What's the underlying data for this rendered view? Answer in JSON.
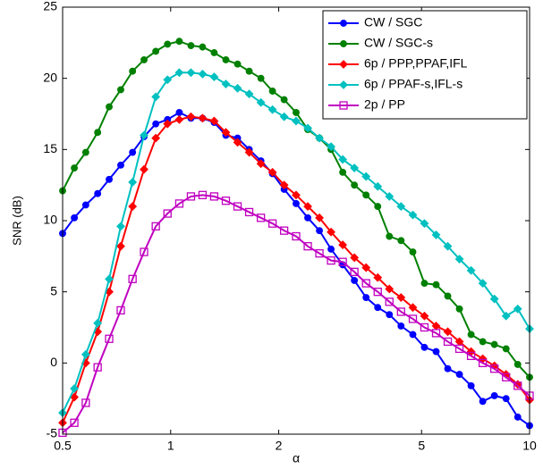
{
  "chart_data": {
    "type": "line",
    "xlabel": "α",
    "ylabel": "SNR (dB)",
    "xscale": "log",
    "xlim": [
      0.5,
      10
    ],
    "ylim": [
      -5,
      25
    ],
    "xticks": [
      0.5,
      1,
      2,
      5,
      10
    ],
    "yticks": [
      -5,
      0,
      5,
      10,
      15,
      20,
      25
    ],
    "legend": "upper right",
    "x": [
      0.5,
      0.539,
      0.58,
      0.626,
      0.674,
      0.726,
      0.783,
      0.843,
      0.909,
      0.98,
      1.057,
      1.139,
      1.227,
      1.322,
      1.425,
      1.536,
      1.655,
      1.784,
      1.922,
      2.071,
      2.236,
      2.41,
      2.597,
      2.798,
      3.016,
      3.25,
      3.503,
      3.775,
      4.068,
      4.384,
      4.729,
      5.094,
      5.49,
      5.916,
      6.376,
      6.871,
      7.405,
      7.98,
      8.6,
      9.268,
      10
    ],
    "series": [
      {
        "name": "CW / SGC",
        "color": "#0000ff",
        "marker": "circle",
        "values": [
          9.1,
          10.2,
          11.1,
          11.9,
          12.9,
          13.9,
          14.8,
          15.9,
          16.8,
          17.1,
          17.6,
          17.2,
          17.2,
          16.9,
          16.0,
          15.8,
          15.0,
          14.2,
          13.3,
          12.2,
          11.2,
          10.2,
          9.3,
          8.0,
          6.9,
          5.8,
          4.6,
          3.9,
          3.4,
          2.6,
          2.0,
          1.1,
          0.8,
          -0.4,
          -0.8,
          -1.6,
          -2.7,
          -2.3,
          -2.5,
          -3.8,
          -4.4
        ]
      },
      {
        "name": "CW / SGC-s",
        "color": "#008000",
        "marker": "circle",
        "values": [
          12.1,
          13.7,
          14.8,
          16.2,
          18.0,
          19.2,
          20.5,
          21.3,
          21.9,
          22.4,
          22.6,
          22.3,
          22.2,
          21.8,
          21.3,
          21.0,
          20.5,
          20.0,
          19.1,
          18.5,
          17.6,
          16.4,
          15.8,
          15.0,
          13.4,
          12.5,
          11.8,
          11.0,
          8.9,
          8.6,
          7.8,
          5.6,
          5.5,
          4.7,
          3.8,
          2.0,
          1.5,
          1.3,
          1.0,
          -0.1,
          -1.0
        ]
      },
      {
        "name": "6p / PPP,PPAF,IFL",
        "color": "#ff0000",
        "marker": "diamond",
        "values": [
          -4.2,
          -2.4,
          0.0,
          2.2,
          5.0,
          8.2,
          11.0,
          13.6,
          15.8,
          16.8,
          17.1,
          17.3,
          17.2,
          17.0,
          16.2,
          15.5,
          14.8,
          14.0,
          13.4,
          12.5,
          11.8,
          11.0,
          10.2,
          9.2,
          8.3,
          7.4,
          6.7,
          6.0,
          5.2,
          4.6,
          3.9,
          3.3,
          2.6,
          2.2,
          1.5,
          0.8,
          0.3,
          -0.2,
          -0.8,
          -1.5,
          -2.6
        ]
      },
      {
        "name": "6p / PPAF-s,IFL-s",
        "color": "#00c0c0",
        "marker": "diamond",
        "values": [
          -3.5,
          -1.8,
          0.6,
          2.8,
          5.9,
          9.6,
          12.7,
          16.0,
          18.7,
          19.9,
          20.4,
          20.4,
          20.3,
          20.1,
          19.6,
          19.3,
          18.9,
          18.3,
          17.8,
          17.3,
          17.0,
          16.5,
          15.8,
          15.2,
          14.3,
          13.7,
          13.1,
          12.4,
          11.7,
          11.0,
          10.4,
          9.8,
          9.0,
          8.2,
          7.3,
          6.5,
          5.6,
          4.5,
          3.3,
          3.8,
          2.4
        ]
      },
      {
        "name": "2p / PP",
        "color": "#c000c0",
        "marker": "square",
        "values": [
          -4.9,
          -4.2,
          -2.8,
          -0.3,
          1.7,
          3.7,
          5.9,
          7.8,
          9.6,
          10.5,
          11.2,
          11.7,
          11.8,
          11.7,
          11.4,
          11.0,
          10.6,
          10.2,
          9.8,
          9.3,
          8.9,
          8.2,
          7.7,
          7.2,
          7.1,
          6.4,
          5.6,
          5.0,
          4.3,
          3.6,
          3.1,
          2.5,
          2.1,
          1.5,
          1.0,
          0.5,
          0.0,
          -0.4,
          -1.0,
          -1.6,
          -2.3
        ]
      }
    ]
  }
}
